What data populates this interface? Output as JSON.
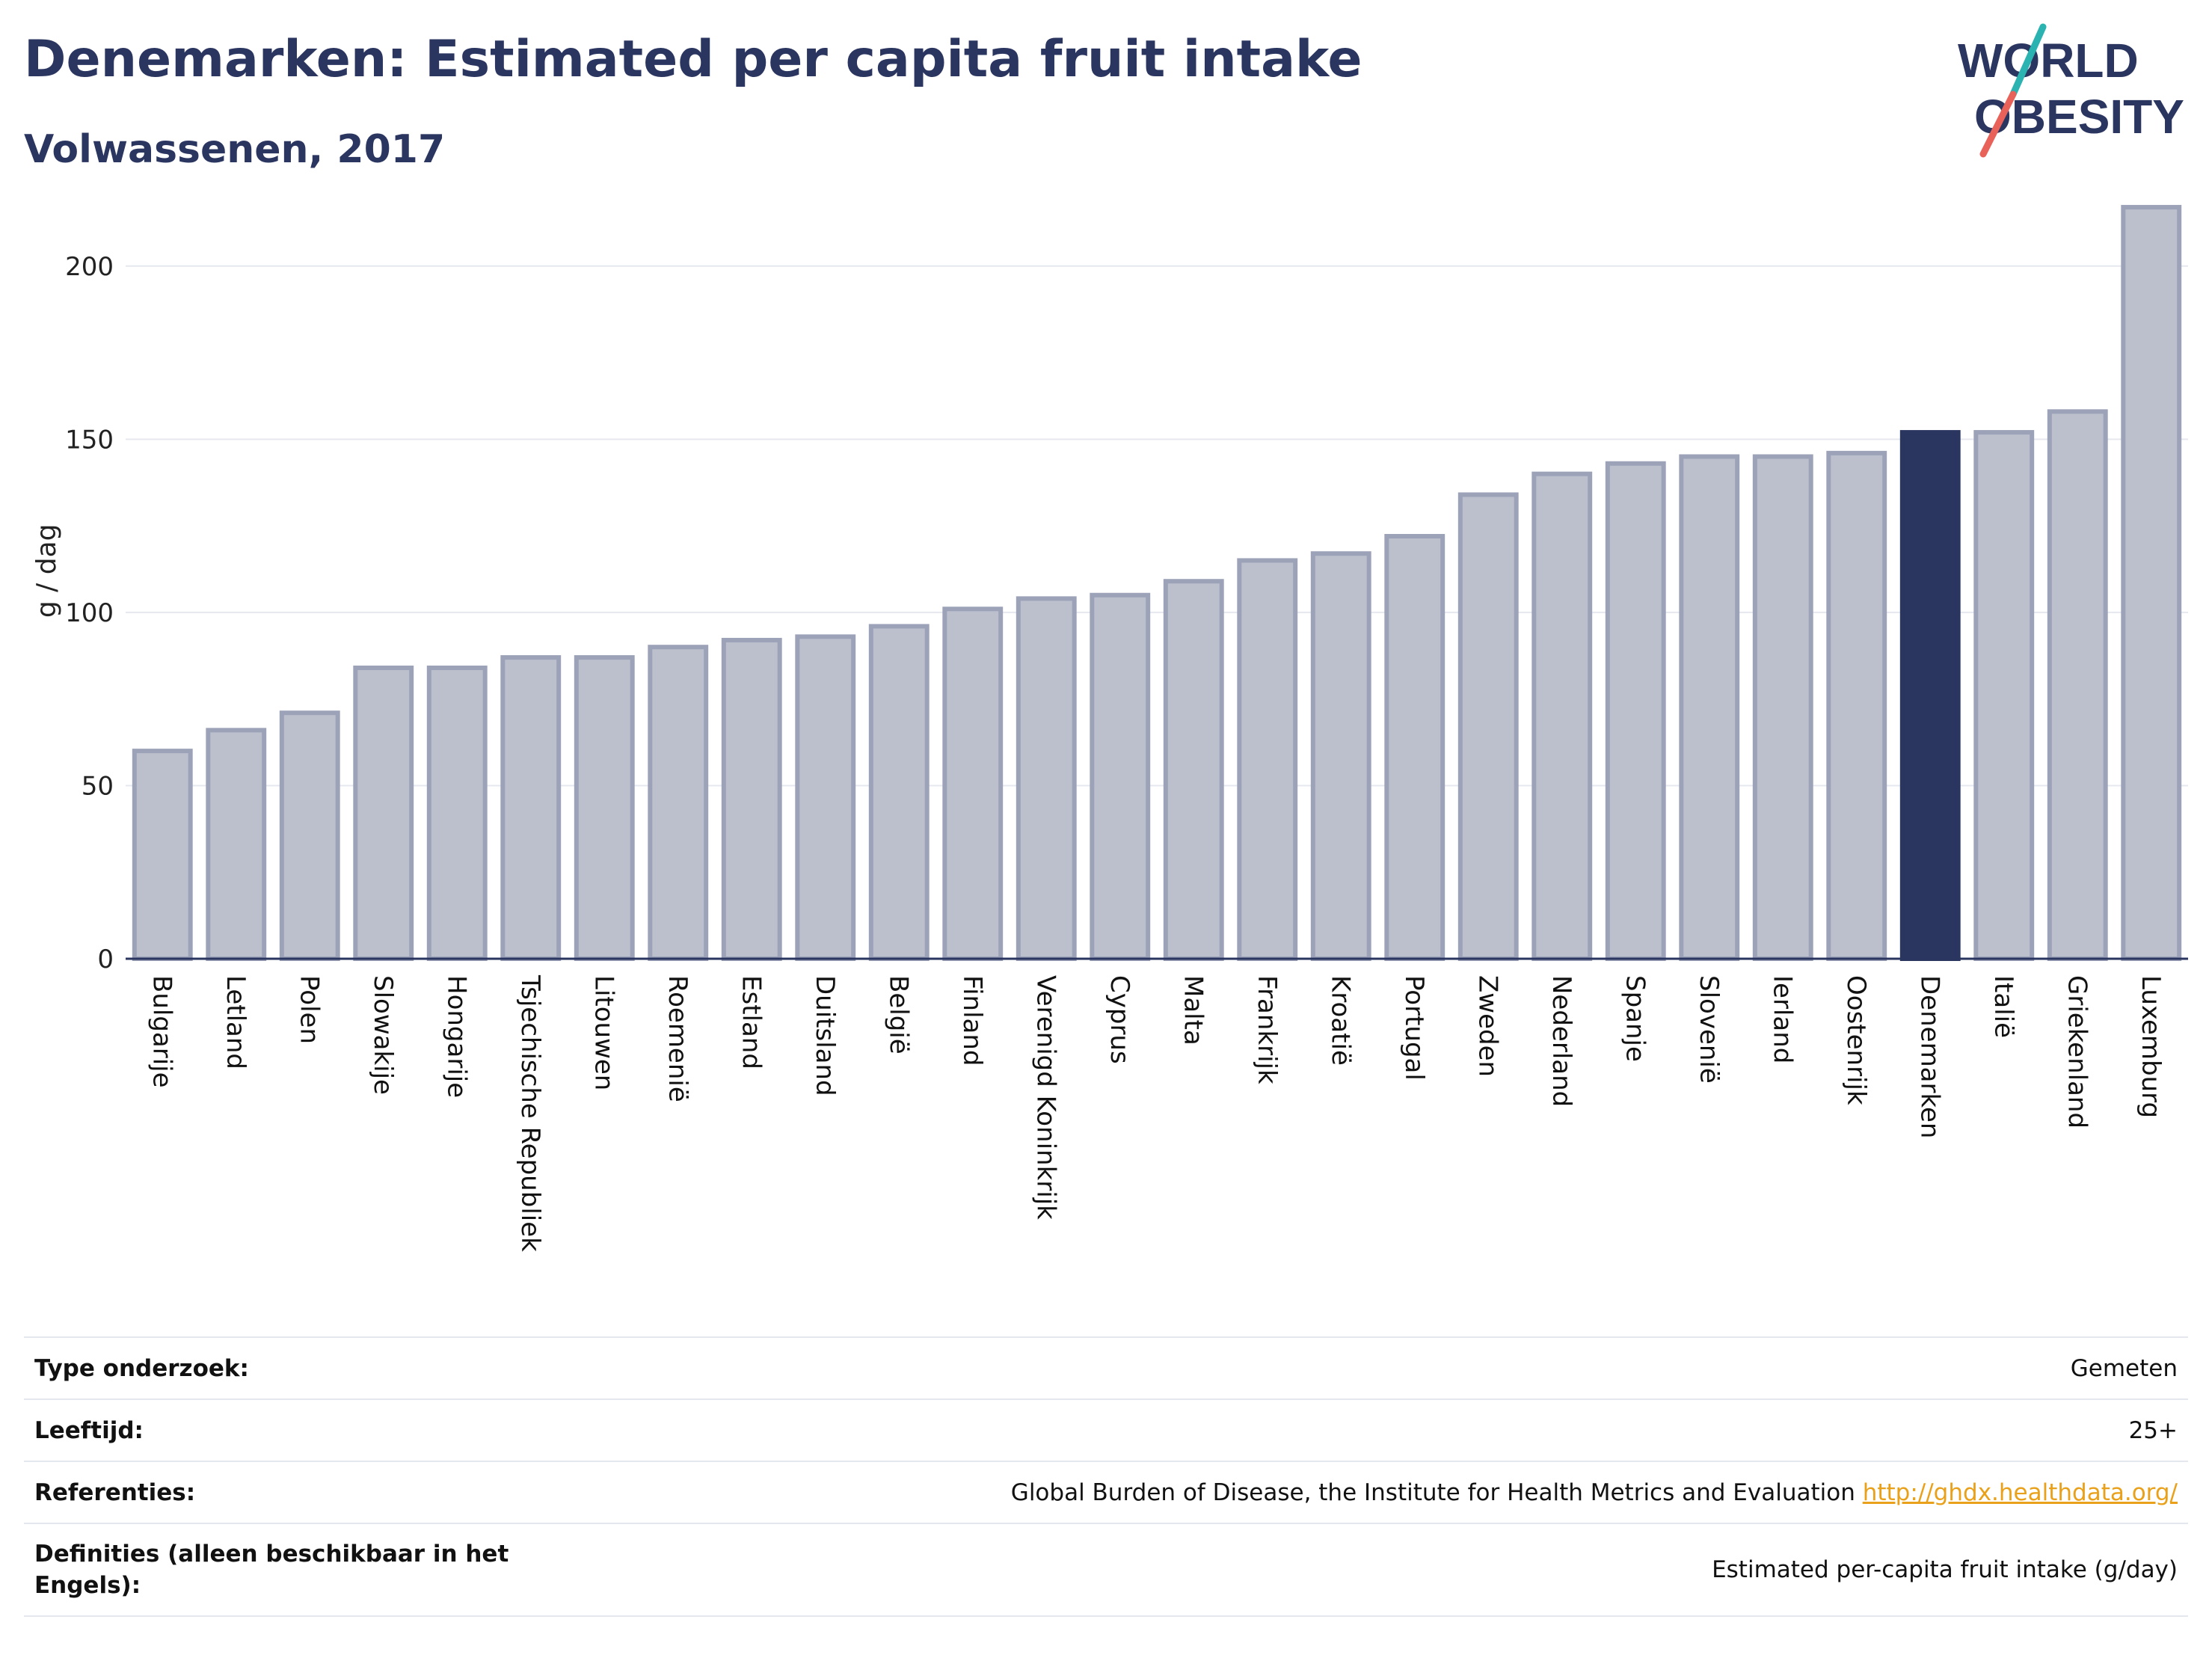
{
  "header": {
    "title": "Denemarken: Estimated per capita fruit intake",
    "subtitle": "Volwassenen, 2017"
  },
  "logo": {
    "line1": "WORLD",
    "line2": "OBESITY",
    "accent_colors": [
      "#2ab3b1",
      "#e8625a"
    ]
  },
  "colors": {
    "bar_default": "#bcc0cd",
    "bar_border": "#9ca2b8",
    "bar_highlight": "#2a3560",
    "grid": "#e6e8ef",
    "axis_line": "#2a3560"
  },
  "chart_data": {
    "type": "bar",
    "title": "Denemarken: Estimated per capita fruit intake",
    "subtitle": "Volwassenen, 2017",
    "xlabel": "",
    "ylabel": "g / dag",
    "ylim": [
      0,
      225
    ],
    "yticks": [
      0,
      50,
      100,
      150,
      200
    ],
    "grid": true,
    "highlight": "Denemarken",
    "categories": [
      "Bulgarije",
      "Letland",
      "Polen",
      "Slowakije",
      "Hongarije",
      "Tsjechische Republiek",
      "Litouwen",
      "Roemenië",
      "Estland",
      "Duitsland",
      "België",
      "Finland",
      "Verenigd Koninkrijk",
      "Cyprus",
      "Malta",
      "Frankrijk",
      "Kroatië",
      "Portugal",
      "Zweden",
      "Nederland",
      "Spanje",
      "Slovenië",
      "Ierland",
      "Oostenrijk",
      "Denemarken",
      "Italië",
      "Griekenland",
      "Luxemburg"
    ],
    "values": [
      60,
      66,
      71,
      84,
      84,
      87,
      87,
      90,
      92,
      93,
      96,
      101,
      104,
      105,
      109,
      115,
      117,
      122,
      134,
      140,
      143,
      145,
      145,
      146,
      152,
      152,
      158,
      217
    ]
  },
  "info": {
    "rows": [
      {
        "label": "Type onderzoek:",
        "value": "Gemeten"
      },
      {
        "label": "Leeftijd:",
        "value": "25+"
      },
      {
        "label": "Referenties:",
        "value": "Global Burden of Disease, the Institute for Health Metrics and Evaluation",
        "link": "http://ghdx.healthdata.org/"
      },
      {
        "label": "Definities (alleen beschikbaar in het Engels):",
        "value": "Estimated per-capita fruit intake (g/day)"
      }
    ]
  }
}
